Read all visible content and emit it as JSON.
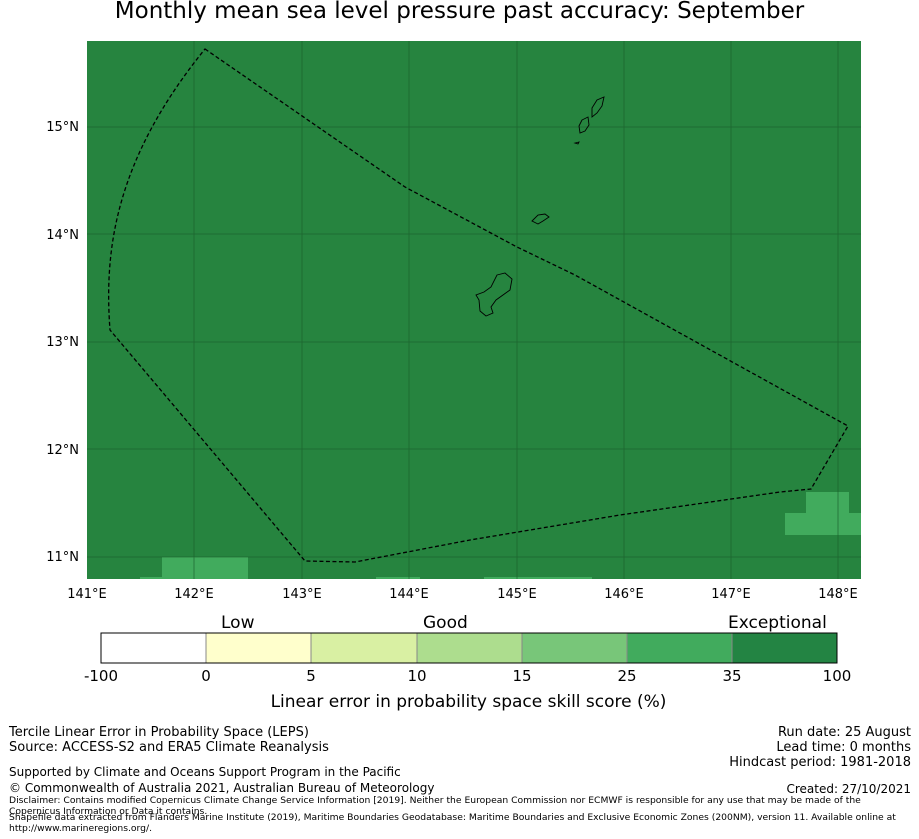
{
  "title": "Monthly mean sea level pressure past accuracy: September",
  "map": {
    "background_color": "#26843f",
    "lon_ticks": [
      "141°E",
      "142°E",
      "143°E",
      "144°E",
      "145°E",
      "146°E",
      "147°E",
      "148°E"
    ],
    "lat_ticks": [
      "15°N",
      "14°N",
      "13°N",
      "12°N",
      "11°N"
    ]
  },
  "colorbar": {
    "categories": [
      "Low",
      "Good",
      "Exceptional"
    ],
    "ticks": [
      "-100",
      "0",
      "5",
      "10",
      "15",
      "25",
      "35",
      "100"
    ],
    "colors": [
      "#ffffff",
      "#ffffcc",
      "#d9f0a3",
      "#addd8e",
      "#78c679",
      "#41ab5d",
      "#238443"
    ],
    "label": "Linear error in probability space skill score (%)"
  },
  "footer": {
    "left_line1": "Tercile Linear Error in Probability Space (LEPS)",
    "left_line2": "Source: ACCESS-S2 and ERA5 Climate Reanalysis",
    "support": "Supported by Climate and Oceans Support Program in the Pacific",
    "copyright": "© Commonwealth of Australia 2021, Australian Bureau of Meteorology",
    "disclaimer": "Disclaimer: Contains modified Copernicus Climate Change Service Information [2019]. Neither the European Commission nor ECMWF is responsible for any use that may be made of the Copernicus Information or Data it contains.",
    "shapefile": "Shapefile data extracted from Flanders Marine Institute (2019), Maritime Boundaries Geodatabase: Maritime Boundaries and Exclusive Economic Zones (200NM), version 11. Available online at http://www.marineregions.org/.",
    "run_date": "Run date: 25 August",
    "lead_time": "Lead time: 0 months",
    "hindcast": "Hindcast period: 1981-2018",
    "created": "Created: 27/10/2021"
  }
}
